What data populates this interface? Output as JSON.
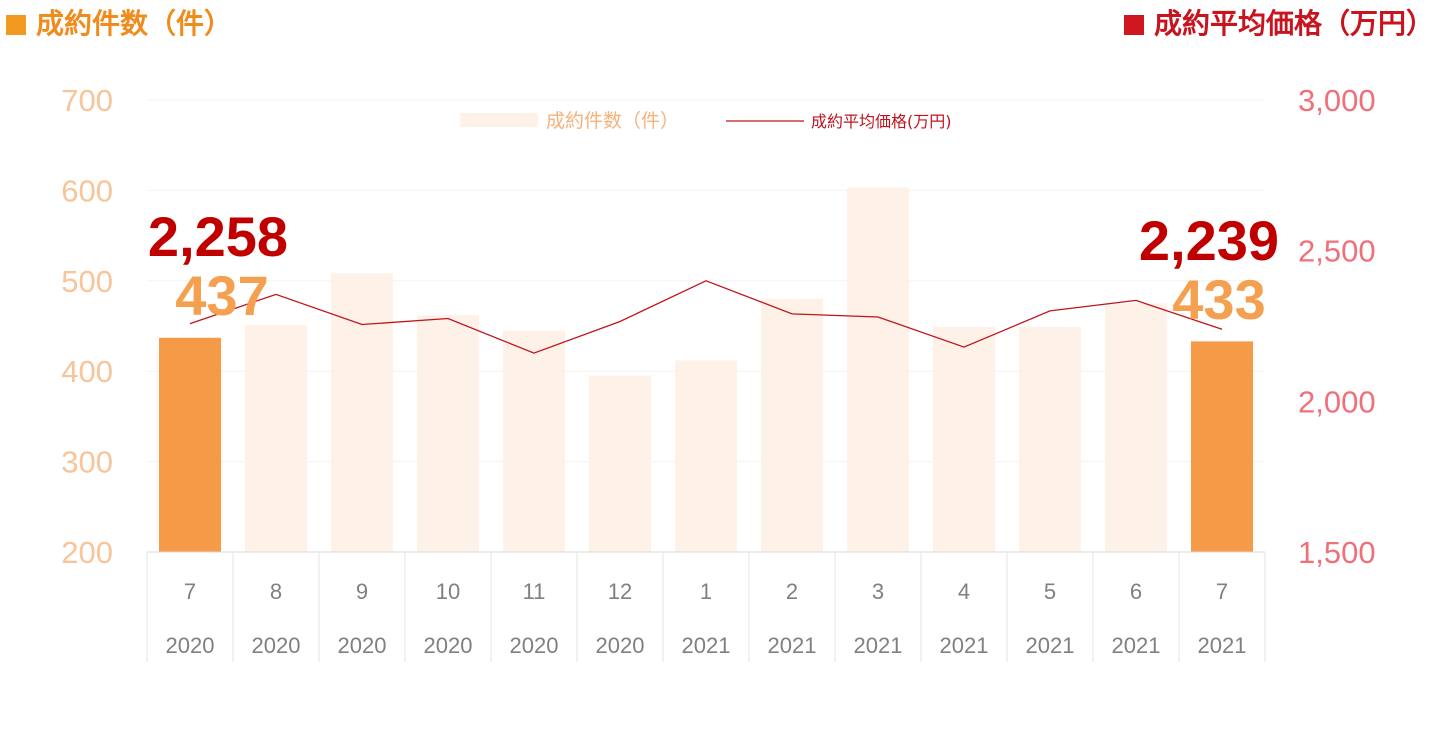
{
  "header": {
    "left_title": "成約件数（件）",
    "left_color": "#f29a1f",
    "right_title": "成約平均価格（万円）",
    "right_color": "#d0161e"
  },
  "chart_data": {
    "type": "bar+line",
    "categories": [
      {
        "month": "7",
        "year": "2020"
      },
      {
        "month": "8",
        "year": "2020"
      },
      {
        "month": "9",
        "year": "2020"
      },
      {
        "month": "10",
        "year": "2020"
      },
      {
        "month": "11",
        "year": "2020"
      },
      {
        "month": "12",
        "year": "2020"
      },
      {
        "month": "1",
        "year": "2021"
      },
      {
        "month": "2",
        "year": "2021"
      },
      {
        "month": "3",
        "year": "2021"
      },
      {
        "month": "4",
        "year": "2021"
      },
      {
        "month": "5",
        "year": "2021"
      },
      {
        "month": "6",
        "year": "2021"
      },
      {
        "month": "7",
        "year": "2021"
      }
    ],
    "series": [
      {
        "name": "成約件数（件）",
        "type": "bar",
        "axis": "left",
        "values": [
          437,
          451,
          508,
          462,
          445,
          395,
          412,
          480,
          603,
          449,
          449,
          475,
          433
        ],
        "highlight": [
          0,
          12
        ],
        "color": "#fdf1e8",
        "highlight_color": "#f59a46"
      },
      {
        "name": "成約平均価格(万円)",
        "type": "line",
        "axis": "right",
        "values": [
          2258,
          2355,
          2255,
          2275,
          2160,
          2265,
          2400,
          2290,
          2280,
          2180,
          2300,
          2335,
          2239
        ],
        "color": "#c0141e"
      }
    ],
    "left_axis": {
      "min": 200,
      "max": 700,
      "ticks": [
        "700",
        "600",
        "500",
        "400",
        "300",
        "200"
      ],
      "color": "#f8c49a"
    },
    "right_axis": {
      "min": 1500,
      "max": 3000,
      "ticks": [
        "3,000",
        "2,500",
        "2,000",
        "1,500"
      ],
      "color": "#f0707a"
    },
    "grid": true,
    "legend_position": "top-center",
    "annotations": [
      {
        "text": "2,258",
        "target": "first",
        "series": "price",
        "color": "#c00000"
      },
      {
        "text": "437",
        "target": "first",
        "series": "count",
        "color": "#f5a050"
      },
      {
        "text": "2,239",
        "target": "last",
        "series": "price",
        "color": "#c00000"
      },
      {
        "text": "433",
        "target": "last",
        "series": "count",
        "color": "#f5a050"
      }
    ]
  }
}
